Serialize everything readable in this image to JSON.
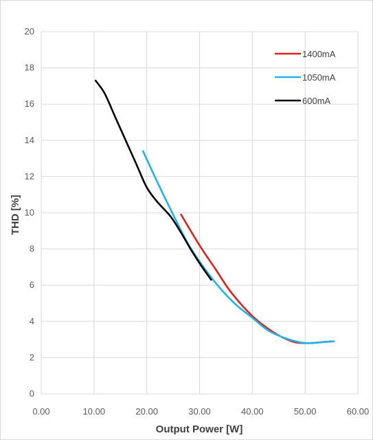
{
  "chart_data": {
    "type": "line",
    "xlabel": "Output Power [W]",
    "ylabel": "THD [%]",
    "xlim": [
      0,
      60
    ],
    "ylim": [
      0,
      20
    ],
    "x_ticks": [
      "0.00",
      "10.00",
      "20.00",
      "30.00",
      "40.00",
      "50.00",
      "60.00"
    ],
    "y_ticks": [
      "0",
      "2",
      "4",
      "6",
      "8",
      "10",
      "12",
      "14",
      "16",
      "18",
      "20"
    ],
    "grid": true,
    "legend_position": "top-right",
    "series": [
      {
        "name": "1400mA",
        "color": "#e0201b",
        "points": [
          [
            26.5,
            9.9
          ],
          [
            30,
            8.2
          ],
          [
            33,
            6.9
          ],
          [
            36,
            5.6
          ],
          [
            40,
            4.3
          ],
          [
            44,
            3.4
          ],
          [
            47.5,
            2.9
          ],
          [
            50,
            2.8
          ],
          [
            53,
            2.85
          ],
          [
            55,
            2.9
          ]
        ]
      },
      {
        "name": "1050mA",
        "color": "#1fb4e8",
        "points": [
          [
            19.3,
            13.4
          ],
          [
            22,
            11.7
          ],
          [
            25,
            9.9
          ],
          [
            28,
            8.2
          ],
          [
            31,
            6.9
          ],
          [
            34,
            5.8
          ],
          [
            37,
            4.9
          ],
          [
            40,
            4.2
          ],
          [
            43,
            3.5
          ],
          [
            46,
            3.1
          ],
          [
            49,
            2.85
          ],
          [
            51,
            2.8
          ],
          [
            53,
            2.85
          ],
          [
            55.5,
            2.9
          ]
        ]
      },
      {
        "name": "600mA",
        "color": "#000000",
        "points": [
          [
            10.3,
            17.3
          ],
          [
            12,
            16.6
          ],
          [
            14,
            15.3
          ],
          [
            16,
            14.0
          ],
          [
            18,
            12.7
          ],
          [
            20,
            11.4
          ],
          [
            22,
            10.6
          ],
          [
            24.5,
            9.8
          ],
          [
            26.5,
            8.9
          ],
          [
            28.5,
            7.9
          ],
          [
            30.5,
            7.0
          ],
          [
            32.2,
            6.3
          ]
        ]
      }
    ]
  }
}
